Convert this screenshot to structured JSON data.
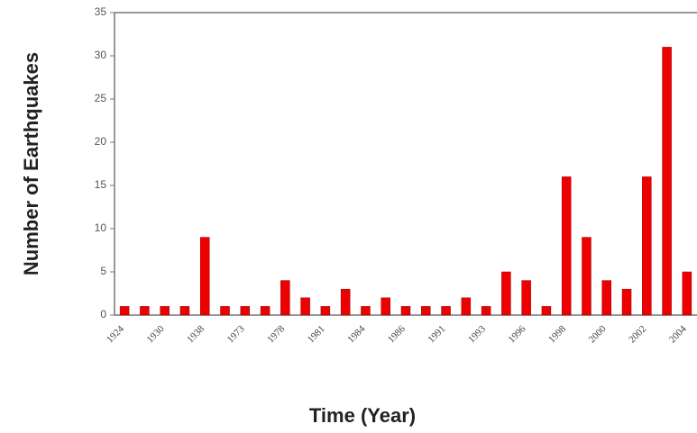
{
  "chart_data": {
    "type": "bar",
    "x_label": "Time (Year)",
    "y_label": "Number of Earthquakes",
    "categories": [
      "1924",
      null,
      "1930",
      null,
      "1938",
      null,
      "1973",
      null,
      "1978",
      null,
      "1981",
      null,
      "1984",
      null,
      "1986",
      null,
      "1991",
      null,
      "1993",
      null,
      "1996",
      null,
      "1998",
      null,
      "2000",
      null,
      "2002",
      null,
      "2004"
    ],
    "values": [
      1,
      1,
      1,
      1,
      9,
      1,
      1,
      1,
      4,
      2,
      1,
      3,
      1,
      2,
      1,
      1,
      1,
      2,
      1,
      5,
      4,
      1,
      16,
      9,
      4,
      3,
      16,
      31,
      5
    ],
    "color": "#ee0000",
    "ylim": [
      0,
      35
    ],
    "yticks": [
      0,
      5,
      10,
      15,
      20,
      25,
      30,
      35
    ]
  }
}
